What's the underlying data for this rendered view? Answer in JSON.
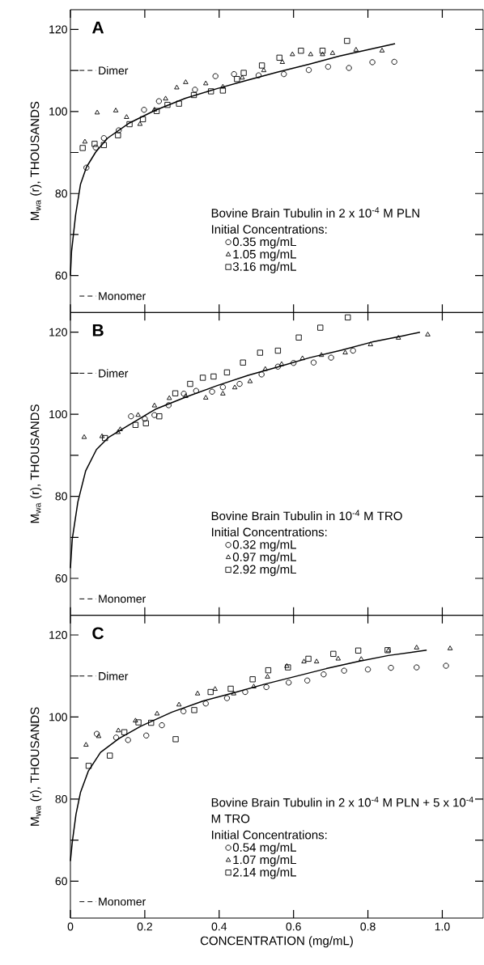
{
  "chart_data": [
    {
      "type": "scatter",
      "title": "A",
      "subtitle": "Bovine Brain Tubulin in 2 x 10$^{-4}$ M PLN",
      "legend_title": "Initial Concentrations:",
      "ylabel": "M$_{wa}$ (r), THOUSANDS",
      "xlim": [
        0,
        1.11
      ],
      "ylim": [
        51,
        124.8
      ],
      "xticks": [
        0,
        0.2,
        0.4,
        0.6,
        0.8,
        1
      ],
      "yticks": [
        60,
        {
          "value": 70,
          "label": null
        },
        80,
        {
          "value": 90,
          "label": null
        },
        100,
        {
          "value": 110,
          "label": null
        },
        120
      ],
      "tick_labels": "y",
      "legend": "bottom right",
      "ref_lines": [
        {
          "axis": "y",
          "value": 110,
          "label": "Dimer",
          "color": "#000000",
          "line_style": "dashed"
        },
        {
          "axis": "y",
          "value": 55,
          "label": "Monomer",
          "color": "#000000",
          "line_style": "dashed"
        }
      ],
      "series": [
        {
          "name": "0.35 mg/mL",
          "color": "#000000",
          "marker": "circle",
          "x": [
            0.043,
            0.068,
            0.09,
            0.13,
            0.198,
            0.238,
            0.335,
            0.39,
            0.44,
            0.506,
            0.574,
            0.641,
            0.693,
            0.749,
            0.812,
            0.871
          ],
          "values": [
            86.3,
            91.2,
            93.5,
            95.4,
            100.4,
            102.5,
            105.3,
            108.6,
            109.1,
            108.8,
            109.1,
            110.1,
            110.9,
            110.6,
            112.0,
            112.1
          ]
        },
        {
          "name": "1.05 mg/mL",
          "color": "#000000",
          "marker": "triangle",
          "x": [
            0.039,
            0.072,
            0.122,
            0.151,
            0.187,
            0.226,
            0.256,
            0.286,
            0.31,
            0.364,
            0.41,
            0.462,
            0.52,
            0.57,
            0.597,
            0.646,
            0.678,
            0.705,
            0.768,
            0.838
          ],
          "values": [
            92.6,
            99.7,
            100.2,
            98.6,
            96.9,
            100.4,
            103.1,
            105.8,
            107.1,
            106.8,
            106.0,
            108.2,
            110.0,
            112.0,
            113.9,
            113.9,
            113.9,
            114.2,
            115.0,
            114.8
          ]
        },
        {
          "name": "3.16 mg/mL",
          "color": "#000000",
          "marker": "square",
          "x": [
            0.033,
            0.065,
            0.09,
            0.128,
            0.159,
            0.195,
            0.232,
            0.261,
            0.292,
            0.332,
            0.378,
            0.41,
            0.448,
            0.466,
            0.515,
            0.562,
            0.62,
            0.678,
            0.744
          ],
          "values": [
            91.1,
            92.1,
            91.8,
            94.2,
            96.9,
            98.1,
            100.1,
            101.6,
            101.9,
            104.0,
            104.9,
            105.1,
            107.9,
            109.4,
            111.2,
            113.1,
            114.8,
            114.8,
            117.2
          ]
        },
        {
          "type": "line",
          "color": "#000000",
          "marker": "none",
          "x": [
            0,
            0.003,
            0.014,
            0.027,
            0.043,
            0.068,
            0.1,
            0.159,
            0.226,
            0.309,
            0.392,
            0.475,
            0.558,
            0.641,
            0.724,
            0.807,
            0.873
          ],
          "values": [
            60,
            65.8,
            74.8,
            82.2,
            86.4,
            90.1,
            93.5,
            97.2,
            100.2,
            103.2,
            105.5,
            107.6,
            109.6,
            111.5,
            113.5,
            115.2,
            116.5
          ]
        }
      ]
    },
    {
      "type": "scatter",
      "title": "B",
      "subtitle": "Bovine Brain Tubulin in 10$^{-4}$ M TRO",
      "legend_title": "Initial Concentrations:",
      "ylabel": "M$_{wa}$ (r), THOUSANDS",
      "xlim": [
        0,
        1.11
      ],
      "ylim": [
        51,
        124.8
      ],
      "xticks": [
        0,
        0.2,
        0.4,
        0.6,
        0.8,
        1
      ],
      "yticks": [
        60,
        {
          "value": 70,
          "label": null
        },
        80,
        {
          "value": 90,
          "label": null
        },
        100,
        {
          "value": 110,
          "label": null
        },
        120
      ],
      "tick_labels": "y",
      "legend": "bottom right",
      "ref_lines": [
        {
          "axis": "y",
          "value": 110,
          "label": "Dimer",
          "color": "#000000",
          "line_style": "dashed"
        },
        {
          "axis": "y",
          "value": 55,
          "label": "Monomer",
          "color": "#000000",
          "line_style": "dashed"
        }
      ],
      "series": [
        {
          "name": "0.32 mg/mL",
          "color": "#000000",
          "marker": "circle",
          "x": [
            0.163,
            0.2,
            0.226,
            0.264,
            0.305,
            0.338,
            0.381,
            0.41,
            0.455,
            0.514,
            0.558,
            0.6,
            0.654,
            0.701,
            0.76
          ],
          "values": [
            99.5,
            98.9,
            99.8,
            102.2,
            105.0,
            105.7,
            105.5,
            106.6,
            107.4,
            109.7,
            111.6,
            112.5,
            112.6,
            113.8,
            115.5
          ]
        },
        {
          "name": "0.97 mg/mL",
          "color": "#000000",
          "marker": "triangle",
          "x": [
            0.037,
            0.085,
            0.128,
            0.134,
            0.182,
            0.226,
            0.266,
            0.31,
            0.364,
            0.41,
            0.442,
            0.483,
            0.524,
            0.568,
            0.624,
            0.675,
            0.739,
            0.807,
            0.882,
            0.961
          ],
          "values": [
            94.4,
            94.6,
            95.6,
            96.3,
            99.8,
            102.1,
            103.9,
            104.4,
            104.0,
            105.0,
            106.5,
            108.0,
            111.0,
            112.2,
            113.6,
            114.4,
            115.0,
            117.0,
            118.6,
            119.4
          ]
        },
        {
          "name": "2.92 mg/mL",
          "color": "#000000",
          "marker": "square",
          "x": [
            0.093,
            0.175,
            0.203,
            0.239,
            0.282,
            0.322,
            0.356,
            0.385,
            0.421,
            0.464,
            0.51,
            0.558,
            0.614,
            0.672,
            0.746
          ],
          "values": [
            94.2,
            97.4,
            97.8,
            99.5,
            105.1,
            107.4,
            108.9,
            109.2,
            110.2,
            112.6,
            115.0,
            115.5,
            118.7,
            121.1,
            123.6
          ]
        },
        {
          "type": "line",
          "color": "#000000",
          "marker": "none",
          "x": [
            0,
            0.005,
            0.02,
            0.041,
            0.07,
            0.103,
            0.145,
            0.228,
            0.311,
            0.395,
            0.478,
            0.561,
            0.644,
            0.728,
            0.811,
            0.894,
            0.94
          ],
          "values": [
            62.5,
            69.6,
            78.6,
            86.2,
            91.4,
            94.4,
            96.7,
            101.2,
            104.2,
            107.0,
            109.5,
            111.6,
            113.8,
            115.6,
            117.6,
            119.1,
            120.0
          ]
        }
      ]
    },
    {
      "type": "scatter",
      "title": "C",
      "subtitle": "Bovine Brain Tubulin in 2 x 10$^{-4}$ M PLN + 5 x 10$^{-4}$ M TRO",
      "legend_title": "Initial Concentrations:",
      "xlabel": "CONCENTRATION (mg/mL)",
      "ylabel": "M$_{wa}$ (r), THOUSANDS",
      "xlim": [
        0,
        1.11
      ],
      "ylim": [
        51,
        124.8
      ],
      "xticks": [
        0,
        0.2,
        0.4,
        0.6,
        0.8,
        {
          "value": 1,
          "label": "1.0"
        }
      ],
      "yticks": [
        60,
        {
          "value": 70,
          "label": null
        },
        80,
        {
          "value": 90,
          "label": null
        },
        100,
        {
          "value": 110,
          "label": null
        },
        120
      ],
      "legend": "bottom right",
      "ref_lines": [
        {
          "axis": "y",
          "value": 110,
          "label": "Dimer",
          "color": "#000000",
          "line_style": "dashed"
        },
        {
          "axis": "y",
          "value": 55,
          "label": "Monomer",
          "color": "#000000",
          "line_style": "dashed"
        }
      ],
      "series": [
        {
          "name": "0.54 mg/mL",
          "color": "#000000",
          "marker": "circle",
          "x": [
            0.071,
            0.123,
            0.155,
            0.204,
            0.246,
            0.304,
            0.364,
            0.421,
            0.47,
            0.527,
            0.587,
            0.637,
            0.681,
            0.736,
            0.8,
            0.862,
            0.931,
            1.01
          ],
          "values": [
            95.9,
            95.0,
            94.4,
            95.5,
            98.0,
            101.4,
            103.3,
            104.6,
            106.1,
            107.3,
            108.4,
            108.9,
            110.4,
            111.3,
            111.6,
            112.0,
            112.1,
            112.5
          ]
        },
        {
          "name": "1.07 mg/mL",
          "color": "#000000",
          "marker": "triangle",
          "x": [
            0.042,
            0.076,
            0.129,
            0.175,
            0.233,
            0.292,
            0.342,
            0.389,
            0.439,
            0.493,
            0.53,
            0.582,
            0.628,
            0.662,
            0.72,
            0.782,
            0.855,
            0.931,
            1.021
          ],
          "values": [
            93.2,
            95.3,
            96.7,
            99.1,
            100.8,
            103.0,
            105.7,
            106.8,
            105.7,
            107.4,
            109.8,
            112.4,
            113.5,
            113.5,
            114.2,
            114.1,
            116.2,
            116.9,
            116.7
          ]
        },
        {
          "name": "2.14 mg/mL",
          "color": "#000000",
          "marker": "square",
          "x": [
            0.049,
            0.106,
            0.145,
            0.183,
            0.217,
            0.283,
            0.333,
            0.377,
            0.431,
            0.49,
            0.532,
            0.585,
            0.64,
            0.707,
            0.774,
            0.853
          ],
          "values": [
            88.1,
            90.6,
            96.3,
            98.7,
            98.6,
            94.6,
            101.7,
            106.1,
            106.9,
            109.2,
            111.4,
            112.1,
            114.2,
            115.4,
            116.2,
            116.3
          ]
        },
        {
          "type": "line",
          "color": "#000000",
          "marker": "none",
          "x": [
            0,
            0.005,
            0.015,
            0.027,
            0.048,
            0.081,
            0.131,
            0.19,
            0.273,
            0.356,
            0.439,
            0.522,
            0.605,
            0.688,
            0.771,
            0.855,
            0.958
          ],
          "values": [
            64.9,
            69.5,
            76.3,
            81.6,
            86.8,
            91.4,
            94.8,
            97.8,
            101.2,
            103.9,
            105.9,
            108.0,
            109.9,
            111.8,
            113.5,
            115.0,
            116.3
          ]
        }
      ]
    }
  ]
}
